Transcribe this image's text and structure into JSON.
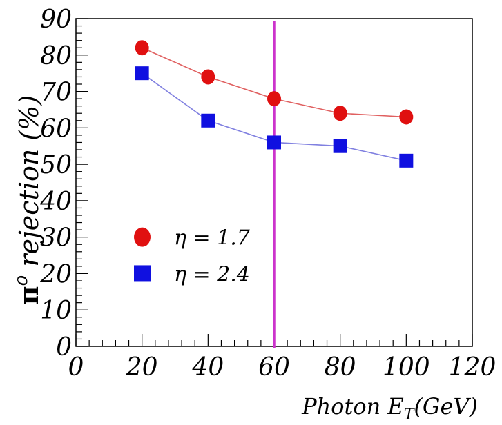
{
  "chart_data": {
    "type": "line",
    "title": "",
    "xlabel_main": "Photon E",
    "xlabel_sub": "T",
    "xlabel_unit": "(GeV)",
    "ylabel_symbol": "π",
    "ylabel_sup": "o",
    "ylabel_text": " rejection (%)",
    "xlim": [
      0,
      120
    ],
    "ylim": [
      0,
      90
    ],
    "xticks": [
      0,
      20,
      40,
      60,
      80,
      100,
      120
    ],
    "yticks": [
      0,
      10,
      20,
      30,
      40,
      50,
      60,
      70,
      80,
      90
    ],
    "xtick_labels": [
      "0",
      "20",
      "40",
      "60",
      "80",
      "100",
      "120"
    ],
    "ytick_labels": [
      "0",
      "10",
      "20",
      "30",
      "40",
      "50",
      "60",
      "70",
      "80",
      "90"
    ],
    "grid": false,
    "legend_position": "lower-left",
    "vertical_line": {
      "x": 60,
      "color": "#cc33cc"
    },
    "series": [
      {
        "name": "η = 1.7",
        "marker": "circle",
        "color": "#e01010",
        "line_color": "#e06060",
        "x": [
          20,
          40,
          60,
          80,
          100
        ],
        "y": [
          82,
          74,
          68,
          64,
          63
        ]
      },
      {
        "name": "η = 2.4",
        "marker": "square",
        "color": "#1010e0",
        "line_color": "#8080e0",
        "x": [
          20,
          40,
          60,
          80,
          100
        ],
        "y": [
          75,
          62,
          56,
          55,
          51
        ]
      }
    ]
  }
}
